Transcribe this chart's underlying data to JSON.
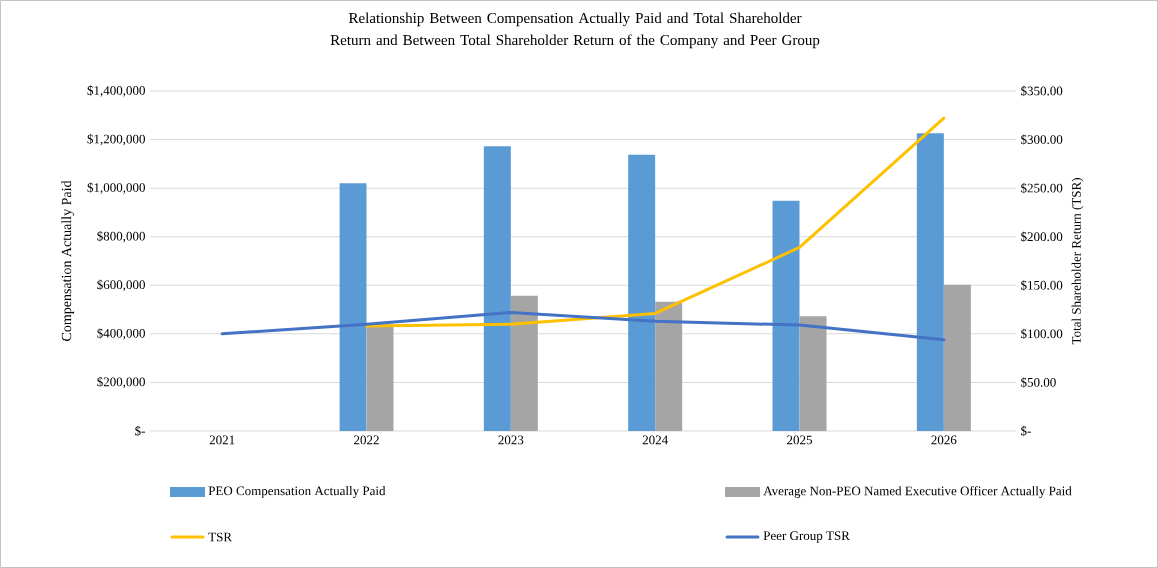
{
  "chart_data": {
    "type": "bar",
    "title": "Relationship Between Compensation Actually Paid and Total Shareholder Return and Between Total Shareholder Return of the Company and Peer Group",
    "categories": [
      "2021",
      "2022",
      "2023",
      "2024",
      "2025",
      "2026"
    ],
    "series": [
      {
        "name": "PEO Compensation Actually Paid",
        "color": "#5b9bd5",
        "values": [
          null,
          1020000,
          1173000,
          1137000,
          948000,
          1226000
        ]
      },
      {
        "name": "Average Non-PEO Named Executive Officer Actually Paid",
        "color": "#a5a5a5",
        "values": [
          null,
          440000,
          557000,
          532000,
          472000,
          602000
        ]
      },
      {
        "type": "line",
        "name": "TSR",
        "color": "#ffc000",
        "axis": "y2",
        "values": [
          null,
          108,
          110,
          121,
          189,
          322
        ]
      },
      {
        "type": "line",
        "name": "Peer Group TSR",
        "color": "#4472c4",
        "axis": "y2",
        "values": [
          100,
          110,
          122,
          113,
          109,
          94
        ]
      }
    ],
    "ylabel": "Compensation Actually Paid",
    "y2label": "Total Shareholder Return (TSR)",
    "ylim": [
      0,
      1400000
    ],
    "yticks": [
      {
        "value": 0,
        "label": "$-"
      },
      {
        "value": 200000,
        "label": "$200,000"
      },
      {
        "value": 400000,
        "label": "$400,000"
      },
      {
        "value": 600000,
        "label": "$600,000"
      },
      {
        "value": 800000,
        "label": "$800,000"
      },
      {
        "value": 1000000,
        "label": "$1,000,000"
      },
      {
        "value": 1200000,
        "label": "$1,200,000"
      },
      {
        "value": 1400000,
        "label": "$1,400,000"
      }
    ],
    "y2lim": [
      0,
      350
    ],
    "y2ticks": [
      {
        "value": 0,
        "label": "$-"
      },
      {
        "value": 50,
        "label": "$50.00"
      },
      {
        "value": 100,
        "label": "$100.00"
      },
      {
        "value": 150,
        "label": "$150.00"
      },
      {
        "value": 200,
        "label": "$200.00"
      },
      {
        "value": 250,
        "label": "$250.00"
      },
      {
        "value": 300,
        "label": "$300.00"
      },
      {
        "value": 350,
        "label": "$350.00"
      }
    ],
    "grid": "y",
    "legend": "bottom"
  }
}
